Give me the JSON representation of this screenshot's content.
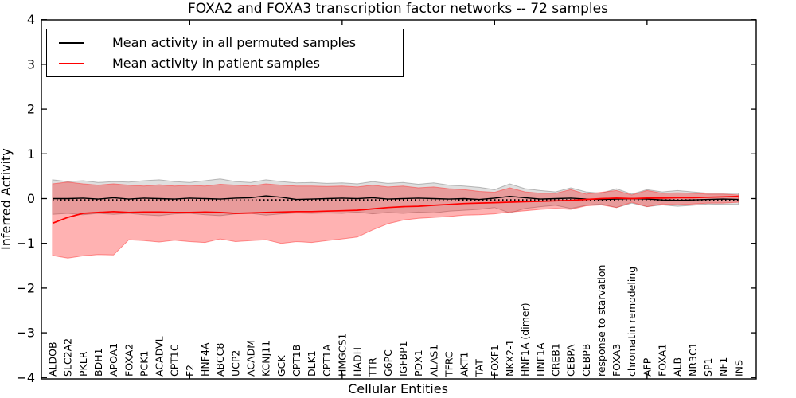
{
  "title": "FOXA2 and FOXA3 transcription factor networks -- 72 samples",
  "chart_data": {
    "type": "line",
    "title": "FOXA2 and FOXA3 transcription factor networks -- 72 samples",
    "xlabel": "Cellular Entities",
    "ylabel": "Inferred Activity",
    "ylim": [
      -4,
      4
    ],
    "yticks": [
      4,
      3,
      2,
      1,
      0,
      -1,
      -2,
      -3,
      -4
    ],
    "x_major_ticks_at_entity_number": [
      10,
      20,
      30,
      40
    ],
    "grid": false,
    "legend_position": "upper left",
    "categories": [
      "ALDOB",
      "SLC2A2",
      "PKLR",
      "BDH1",
      "APOA1",
      "FOXA2",
      "PCK1",
      "ACADVL",
      "CPT1C",
      "F2",
      "HNF4A",
      "ABCC8",
      "UCP2",
      "ACADM",
      "KCNJ11",
      "GCK",
      "CPT1B",
      "DLK1",
      "CPT1A",
      "HMGCS1",
      "HADH",
      "TTR",
      "G6PC",
      "IGFBP1",
      "PDX1",
      "ALAS1",
      "TFRC",
      "AKT1",
      "TAT",
      "FOXF1",
      "NKX2-1",
      "HNF1A (dimer)",
      "HNF1A",
      "CREB1",
      "CEBPA",
      "CEBPB",
      "response to starvation",
      "FOXA3",
      "chromatin remodeling",
      "AFP",
      "FOXA1",
      "ALB",
      "NR3C1",
      "SP1",
      "NF1",
      "INS"
    ],
    "series": [
      {
        "name": "Mean activity in all permuted samples",
        "color": "#000000",
        "line_width": 1.4,
        "band_color": "rgba(128,128,128,0.25)",
        "band_edge_color": "rgba(110,110,110,0.45)",
        "mean": [
          0.0,
          0.0,
          0.01,
          -0.01,
          0.02,
          -0.01,
          0.01,
          0.0,
          -0.01,
          0.01,
          0.0,
          -0.01,
          0.01,
          0.02,
          0.06,
          0.03,
          -0.02,
          -0.01,
          0.0,
          0.01,
          0.0,
          0.02,
          -0.01,
          0.0,
          0.01,
          0.0,
          -0.01,
          0.0,
          -0.02,
          0.01,
          0.05,
          0.02,
          -0.01,
          0.0,
          0.01,
          -0.01,
          -0.02,
          -0.01,
          0.0,
          -0.01,
          -0.03,
          -0.04,
          -0.03,
          -0.02,
          -0.01,
          -0.02
        ],
        "upper": [
          0.42,
          0.38,
          0.4,
          0.36,
          0.38,
          0.37,
          0.4,
          0.42,
          0.38,
          0.36,
          0.4,
          0.44,
          0.38,
          0.36,
          0.42,
          0.38,
          0.35,
          0.36,
          0.34,
          0.35,
          0.33,
          0.38,
          0.34,
          0.36,
          0.32,
          0.35,
          0.3,
          0.28,
          0.25,
          0.2,
          0.33,
          0.22,
          0.18,
          0.15,
          0.24,
          0.15,
          0.12,
          0.22,
          0.1,
          0.2,
          0.15,
          0.18,
          0.15,
          0.12,
          0.12,
          0.12
        ],
        "lower": [
          -0.35,
          -0.33,
          -0.36,
          -0.33,
          -0.35,
          -0.33,
          -0.36,
          -0.38,
          -0.34,
          -0.33,
          -0.36,
          -0.38,
          -0.34,
          -0.33,
          -0.37,
          -0.34,
          -0.32,
          -0.33,
          -0.32,
          -0.33,
          -0.3,
          -0.34,
          -0.31,
          -0.33,
          -0.3,
          -0.32,
          -0.28,
          -0.26,
          -0.24,
          -0.2,
          -0.32,
          -0.22,
          -0.18,
          -0.15,
          -0.22,
          -0.15,
          -0.12,
          -0.2,
          -0.1,
          -0.18,
          -0.14,
          -0.17,
          -0.15,
          -0.12,
          -0.13,
          -0.13
        ]
      },
      {
        "name": "Mean activity in patient samples",
        "color": "#ff0000",
        "line_width": 1.7,
        "band_color": "rgba(255,0,0,0.30)",
        "band_edge_color": "rgba(255,60,60,0.55)",
        "mean": [
          -0.55,
          -0.42,
          -0.33,
          -0.31,
          -0.29,
          -0.31,
          -0.3,
          -0.3,
          -0.31,
          -0.31,
          -0.3,
          -0.31,
          -0.33,
          -0.32,
          -0.31,
          -0.3,
          -0.29,
          -0.29,
          -0.28,
          -0.27,
          -0.26,
          -0.23,
          -0.2,
          -0.18,
          -0.17,
          -0.15,
          -0.13,
          -0.11,
          -0.1,
          -0.09,
          -0.08,
          -0.07,
          -0.06,
          -0.05,
          -0.04,
          -0.02,
          0.0,
          0.01,
          0.0,
          0.01,
          0.01,
          0.02,
          0.02,
          0.03,
          0.04,
          0.05
        ],
        "upper": [
          0.33,
          0.37,
          0.33,
          0.3,
          0.33,
          0.3,
          0.28,
          0.31,
          0.28,
          0.3,
          0.28,
          0.32,
          0.3,
          0.28,
          0.33,
          0.3,
          0.28,
          0.28,
          0.27,
          0.28,
          0.26,
          0.3,
          0.26,
          0.28,
          0.24,
          0.26,
          0.22,
          0.2,
          0.16,
          0.14,
          0.24,
          0.15,
          0.12,
          0.12,
          0.2,
          0.1,
          0.14,
          0.18,
          0.08,
          0.18,
          0.12,
          0.13,
          0.12,
          0.1,
          0.1,
          0.08
        ],
        "lower": [
          -1.27,
          -1.33,
          -1.28,
          -1.25,
          -1.26,
          -0.92,
          -0.94,
          -0.97,
          -0.93,
          -0.96,
          -0.98,
          -0.9,
          -0.96,
          -0.94,
          -0.92,
          -1.0,
          -0.96,
          -0.98,
          -0.94,
          -0.9,
          -0.86,
          -0.7,
          -0.56,
          -0.48,
          -0.44,
          -0.42,
          -0.4,
          -0.37,
          -0.36,
          -0.34,
          -0.3,
          -0.27,
          -0.24,
          -0.22,
          -0.24,
          -0.16,
          -0.14,
          -0.2,
          -0.08,
          -0.18,
          -0.12,
          -0.14,
          -0.12,
          -0.1,
          -0.1,
          -0.08
        ]
      }
    ],
    "dotted_reference_line": {
      "style": "dotted",
      "color": "#000000",
      "value": -0.03
    }
  },
  "colors": {
    "background": "#ffffff",
    "axis": "#000000"
  }
}
